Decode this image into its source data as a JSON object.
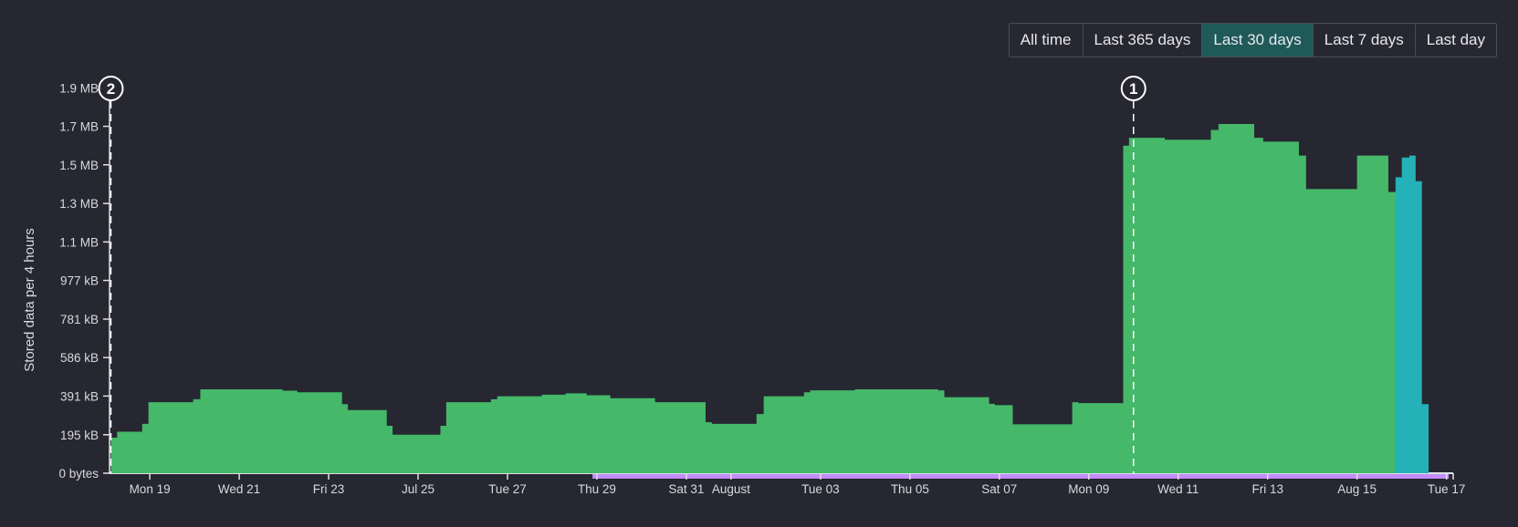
{
  "range_buttons": [
    {
      "label": "All time",
      "active": false
    },
    {
      "label": "Last 365 days",
      "active": false
    },
    {
      "label": "Last 30 days",
      "active": true
    },
    {
      "label": "Last 7 days",
      "active": false
    },
    {
      "label": "Last day",
      "active": false
    }
  ],
  "colors": {
    "background": "#262730",
    "stored": "#45b86a",
    "recent": "#24b1b8",
    "purple_range": "#c28cff",
    "active_button": "#1f5a59"
  },
  "chart_data": {
    "type": "area",
    "title": "",
    "ylabel": "Stored data per 4 hours",
    "xlabel": "",
    "ylim_kb": [
      0,
      1950
    ],
    "y_ticks": [
      {
        "label": "0 bytes",
        "kb": 0
      },
      {
        "label": "195 kB",
        "kb": 195
      },
      {
        "label": "391 kB",
        "kb": 391
      },
      {
        "label": "586 kB",
        "kb": 586
      },
      {
        "label": "781 kB",
        "kb": 781
      },
      {
        "label": "977 kB",
        "kb": 977
      },
      {
        "label": "1.1 MB",
        "kb": 1172
      },
      {
        "label": "1.3 MB",
        "kb": 1367
      },
      {
        "label": "1.5 MB",
        "kb": 1563
      },
      {
        "label": "1.7 MB",
        "kb": 1758
      },
      {
        "label": "1.9 MB",
        "kb": 1953
      }
    ],
    "x_range_days": [
      -0.9,
      29.15
    ],
    "x_ticks": [
      {
        "label": "Mon 19",
        "day": 0
      },
      {
        "label": "Wed 21",
        "day": 2
      },
      {
        "label": "Fri 23",
        "day": 4
      },
      {
        "label": "Jul 25",
        "day": 6
      },
      {
        "label": "Tue 27",
        "day": 8
      },
      {
        "label": "Thu 29",
        "day": 10
      },
      {
        "label": "Sat 31",
        "day": 12
      },
      {
        "label": "August",
        "day": 13
      },
      {
        "label": "Tue 03",
        "day": 15
      },
      {
        "label": "Thu 05",
        "day": 17
      },
      {
        "label": "Sat 07",
        "day": 19
      },
      {
        "label": "Mon 09",
        "day": 21
      },
      {
        "label": "Wed 11",
        "day": 23
      },
      {
        "label": "Fri 13",
        "day": 25
      },
      {
        "label": "Aug 15",
        "day": 27
      },
      {
        "label": "Tue 17",
        "day": 29
      }
    ],
    "series": [
      {
        "key": "stored",
        "color": "#45b86a",
        "points": [
          [
            -0.87,
            180
          ],
          [
            -0.73,
            210
          ],
          [
            -0.17,
            250
          ],
          [
            -0.03,
            360
          ],
          [
            0.97,
            375
          ],
          [
            1.13,
            425
          ],
          [
            2.97,
            418
          ],
          [
            3.3,
            410
          ],
          [
            4.3,
            350
          ],
          [
            4.43,
            320
          ],
          [
            5.3,
            240
          ],
          [
            5.43,
            195
          ],
          [
            6.5,
            240
          ],
          [
            6.63,
            360
          ],
          [
            7.63,
            375
          ],
          [
            7.77,
            390
          ],
          [
            8.77,
            398
          ],
          [
            9.3,
            405
          ],
          [
            9.77,
            395
          ],
          [
            10.3,
            380
          ],
          [
            11.3,
            360
          ],
          [
            12.43,
            258
          ],
          [
            12.57,
            250
          ],
          [
            13.57,
            300
          ],
          [
            13.73,
            390
          ],
          [
            14.63,
            410
          ],
          [
            14.77,
            420
          ],
          [
            15.77,
            425
          ],
          [
            17.63,
            420
          ],
          [
            17.77,
            385
          ],
          [
            18.77,
            352
          ],
          [
            18.9,
            345
          ],
          [
            19.3,
            248
          ],
          [
            20.63,
            360
          ],
          [
            20.77,
            355
          ],
          [
            21.77,
            1660
          ],
          [
            21.9,
            1700
          ],
          [
            22.7,
            1690
          ],
          [
            23.73,
            1740
          ],
          [
            23.9,
            1770
          ],
          [
            24.7,
            1700
          ],
          [
            24.9,
            1680
          ],
          [
            25.7,
            1610
          ],
          [
            25.86,
            1440
          ],
          [
            27.0,
            1610
          ],
          [
            27.7,
            1425
          ],
          [
            28.0,
            0
          ]
        ]
      },
      {
        "key": "recent",
        "color": "#24b1b8",
        "points": [
          [
            27.86,
            1500
          ],
          [
            28.0,
            1600
          ],
          [
            28.17,
            1610
          ],
          [
            28.31,
            1480
          ],
          [
            28.45,
            350
          ],
          [
            28.6,
            0
          ]
        ]
      }
    ],
    "purple_range_days": [
      9.9,
      29.05
    ],
    "annotations": [
      {
        "label": "2",
        "day": -0.87
      },
      {
        "label": "1",
        "day": 22.0
      }
    ]
  }
}
